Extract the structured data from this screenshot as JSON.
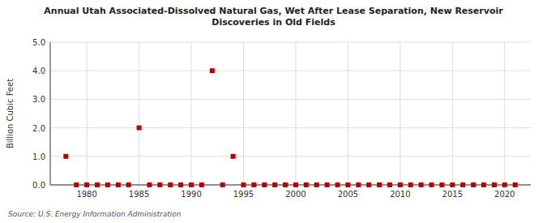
{
  "chart_data": {
    "type": "scatter",
    "title": "Annual Utah Associated-Dissolved Natural Gas, Wet After Lease Separation, New Reservoir\nDiscoveries in Old Fields",
    "ylabel": "Billion Cubic Feet",
    "source": "Source: U.S. Energy Information Administration",
    "x": [
      1978,
      1979,
      1980,
      1981,
      1982,
      1983,
      1984,
      1985,
      1986,
      1987,
      1988,
      1989,
      1990,
      1991,
      1992,
      1993,
      1994,
      1995,
      1996,
      1997,
      1998,
      1999,
      2000,
      2001,
      2002,
      2003,
      2004,
      2005,
      2006,
      2007,
      2008,
      2009,
      2010,
      2011,
      2012,
      2013,
      2014,
      2015,
      2016,
      2017,
      2018,
      2019,
      2020,
      2021
    ],
    "values": [
      1.0,
      0.0,
      0.0,
      0.0,
      0.0,
      0.0,
      0.0,
      2.0,
      0.0,
      0.0,
      0.0,
      0.0,
      0.0,
      0.0,
      4.0,
      0.0,
      1.0,
      0.0,
      0.0,
      0.0,
      0.0,
      0.0,
      0.0,
      0.0,
      0.0,
      0.0,
      0.0,
      0.0,
      0.0,
      0.0,
      0.0,
      0.0,
      0.0,
      0.0,
      0.0,
      0.0,
      0.0,
      0.0,
      0.0,
      0.0,
      0.0,
      0.0,
      0.0,
      0.0
    ],
    "color": "#bb0000",
    "marker": "square",
    "xlim": [
      1976.5,
      2022.5
    ],
    "ylim": [
      0.0,
      5.0
    ],
    "xticks": [
      1980,
      1985,
      1990,
      1995,
      2000,
      2005,
      2010,
      2015,
      2020
    ],
    "yticks": [
      {
        "value": 0.0,
        "label": "0.0"
      },
      {
        "value": 1.0,
        "label": "1.0"
      },
      {
        "value": 2.0,
        "label": "2.0"
      },
      {
        "value": 3.0,
        "label": "3.0"
      },
      {
        "value": 4.0,
        "label": "4.0"
      },
      {
        "value": 5.0,
        "label": "5.0"
      }
    ],
    "grid": true
  }
}
